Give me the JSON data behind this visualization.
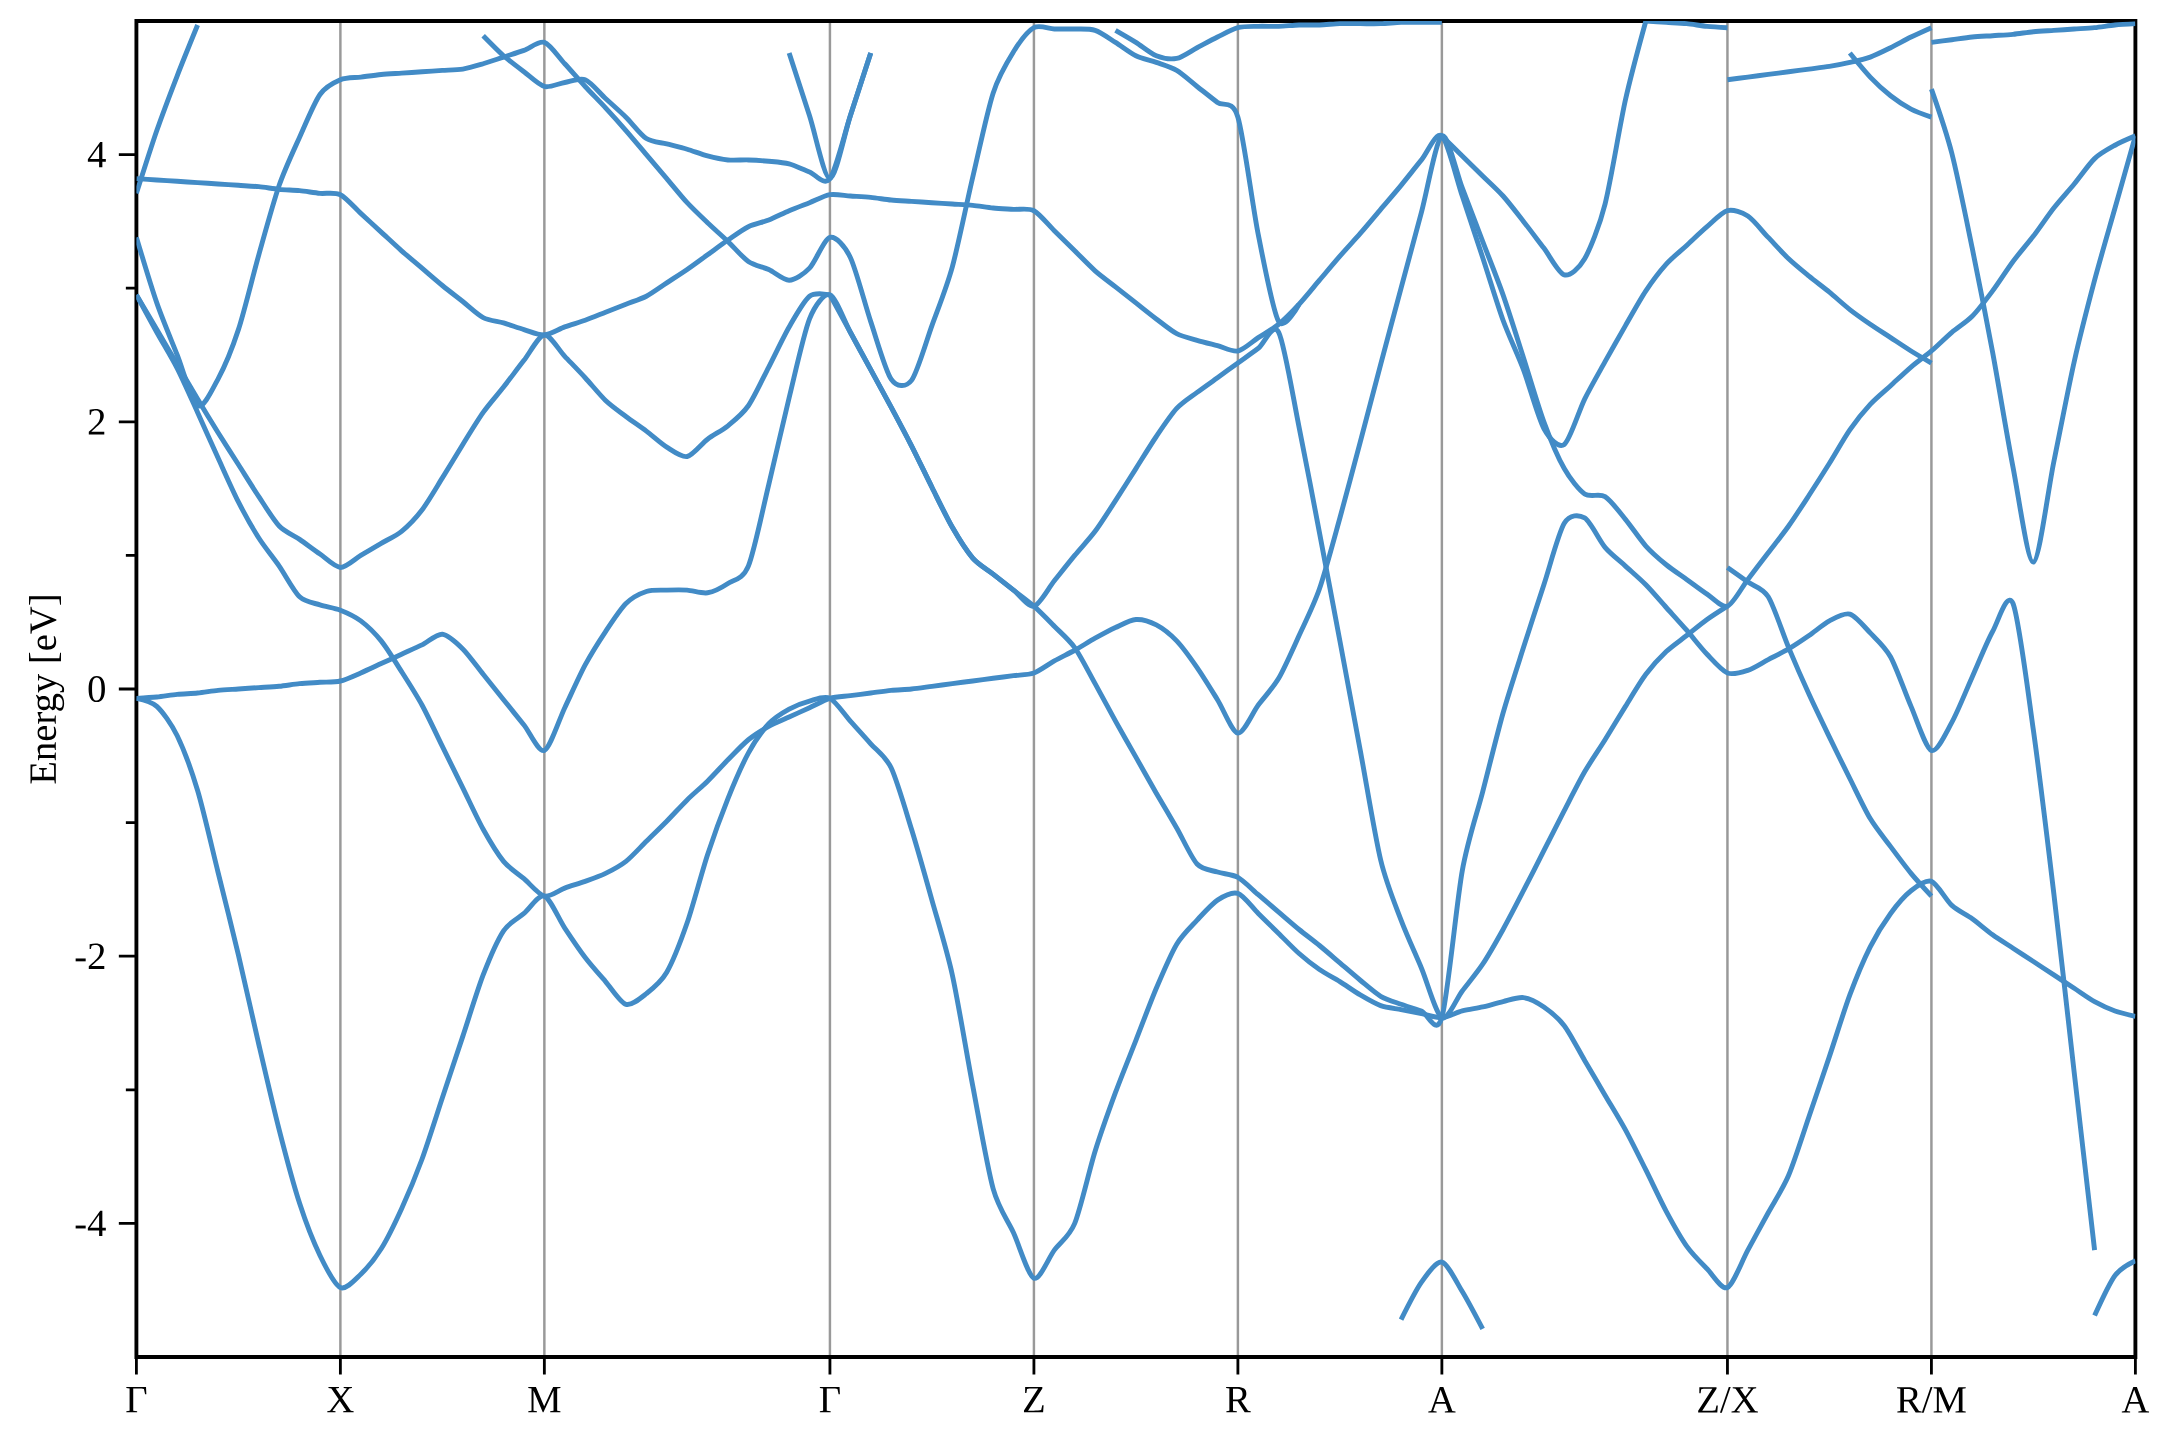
{
  "chart_data": {
    "type": "line",
    "ylabel": "Energy [eV]",
    "grid": "x",
    "ylim": [
      -5,
      5
    ],
    "categories": [
      "Γ",
      null,
      null,
      null,
      null,
      null,
      null,
      null,
      null,
      null,
      "X",
      null,
      null,
      null,
      null,
      null,
      null,
      null,
      null,
      null,
      "M",
      null,
      null,
      null,
      null,
      null,
      null,
      null,
      null,
      null,
      null,
      null,
      null,
      null,
      "Γ",
      null,
      null,
      null,
      null,
      null,
      null,
      null,
      null,
      null,
      "Z",
      null,
      null,
      null,
      null,
      null,
      null,
      null,
      null,
      null,
      "R",
      null,
      null,
      null,
      null,
      null,
      null,
      null,
      null,
      null,
      "A",
      null,
      null,
      null,
      null,
      null,
      null,
      null,
      null,
      null,
      null,
      null,
      null,
      null,
      "Z/X",
      null,
      null,
      null,
      null,
      null,
      null,
      null,
      null,
      null,
      "R/M",
      null,
      null,
      null,
      null,
      null,
      null,
      null,
      null,
      null,
      "A"
    ],
    "yticks": [
      -4,
      {
        "value": -3,
        "label": null
      },
      -2,
      {
        "value": -1,
        "label": null
      },
      0,
      {
        "value": 1,
        "label": null
      },
      2,
      {
        "value": 3,
        "label": null
      },
      4
    ],
    "series": [
      {
        "color": "#428bc6",
        "values": [
          -0.07,
          -0.13,
          -0.35,
          -0.76,
          -1.37,
          -1.99,
          -2.66,
          -3.3,
          -3.85,
          -4.24,
          -4.48,
          -4.38,
          -4.19,
          -3.89,
          -3.52,
          -3.06,
          -2.6,
          -2.14,
          -1.81,
          -1.68,
          -1.55,
          -1.79,
          -2.01,
          -2.19,
          -2.36,
          -2.28,
          -2.12,
          -1.75,
          -1.24,
          -0.82,
          -0.48,
          -0.26,
          -0.15,
          -0.09,
          -0.07,
          -0.24,
          -0.41,
          -0.59,
          -1.05,
          -1.58,
          -2.14,
          -2.97,
          -3.74,
          -4.07,
          -4.41,
          -4.2,
          -4.0,
          -3.46,
          -3.02,
          -2.63,
          -2.24,
          -1.91,
          -1.73,
          -1.58,
          -1.53,
          -1.68,
          -1.83,
          -1.98,
          -2.1,
          -2.19,
          -2.29,
          -2.37,
          -2.4,
          -2.43,
          -2.46,
          -2.41,
          -2.38,
          -2.34,
          -2.31,
          -2.38,
          -2.52,
          -2.78,
          -3.04,
          -3.3,
          -3.6,
          -3.91,
          -4.17,
          -4.34,
          -4.48,
          -4.2,
          -3.92,
          -3.64,
          -3.2,
          -2.75,
          -2.29,
          -1.93,
          -1.68,
          -1.51,
          -1.44,
          -1.62,
          -1.72,
          -1.84,
          -1.94,
          -2.04,
          -2.14,
          -2.24,
          -2.34,
          -2.41,
          -2.45
        ]
      },
      {
        "color": "#428bc6",
        "values": [
          2.95,
          2.67,
          2.4,
          2.07,
          1.73,
          1.4,
          1.13,
          0.92,
          0.69,
          0.63,
          0.59,
          0.51,
          0.36,
          0.13,
          -0.12,
          -0.43,
          -0.74,
          -1.05,
          -1.29,
          -1.42,
          -1.55,
          -1.49,
          -1.44,
          -1.38,
          -1.29,
          -1.14,
          -0.99,
          -0.83,
          -0.69,
          -0.53,
          -0.38,
          -0.28,
          -0.21,
          -0.14,
          -0.07,
          -0.05,
          -0.03,
          -0.01,
          0.0,
          0.02,
          0.04,
          0.06,
          0.08,
          0.1,
          0.12,
          0.21,
          0.29,
          0.38,
          0.46,
          0.52,
          0.48,
          0.36,
          0.16,
          -0.08,
          -0.33,
          -0.12,
          0.08,
          0.4,
          0.75,
          1.28,
          1.85,
          2.43,
          3.0,
          3.57,
          4.14,
          3.75,
          3.35,
          2.95,
          2.48,
          2.0,
          1.65,
          1.46,
          1.44,
          1.27,
          1.07,
          0.93,
          0.82,
          0.71,
          0.62,
          0.82,
          1.02,
          1.22,
          1.45,
          1.69,
          1.94,
          2.13,
          2.27,
          2.41,
          2.53,
          2.67,
          2.79,
          2.98,
          3.2,
          3.39,
          3.6,
          3.78,
          3.97,
          4.07,
          4.14
        ]
      },
      {
        "color": "#428bc6",
        "values": [
          -0.07,
          -0.06,
          -0.04,
          -0.03,
          -0.01,
          0.0,
          0.01,
          0.02,
          0.04,
          0.05,
          0.06,
          0.12,
          0.19,
          0.26,
          0.33,
          0.41,
          0.3,
          0.11,
          -0.08,
          -0.27,
          -0.46,
          -0.14,
          0.18,
          0.43,
          0.64,
          0.73,
          0.74,
          0.74,
          0.72,
          0.79,
          0.92,
          1.53,
          2.18,
          2.77,
          2.95,
          2.67,
          2.39,
          2.11,
          1.82,
          1.51,
          1.21,
          0.98,
          0.86,
          0.74,
          0.62,
          0.47,
          0.31,
          0.04,
          -0.24,
          -0.51,
          -0.78,
          -1.04,
          -1.31,
          -1.37,
          -1.41,
          -1.54,
          -1.67,
          -1.8,
          -1.92,
          -2.05,
          -2.18,
          -2.3,
          -2.36,
          -2.41,
          -2.46,
          -1.36,
          -0.77,
          -0.18,
          0.31,
          0.78,
          1.24,
          1.28,
          1.06,
          0.92,
          0.78,
          0.61,
          0.44,
          0.26,
          0.12,
          0.14,
          0.22,
          0.3,
          0.4,
          0.51,
          0.56,
          0.42,
          0.24,
          -0.13,
          -0.46,
          -0.25,
          0.09,
          0.43,
          0.64,
          -0.31,
          -1.53,
          -2.87,
          -4.2,
          null,
          null
        ]
      },
      {
        "color": "#428bc6",
        "values": [
          2.95,
          2.69,
          2.43,
          2.17,
          1.92,
          1.68,
          1.44,
          1.22,
          1.12,
          1.01,
          0.91,
          1.0,
          1.09,
          1.18,
          1.34,
          1.58,
          1.83,
          2.07,
          2.26,
          2.46,
          2.65,
          2.49,
          2.33,
          2.16,
          2.04,
          1.93,
          1.81,
          1.74,
          1.87,
          1.97,
          2.12,
          2.41,
          2.71,
          2.94,
          2.95,
          null,
          null,
          null,
          null,
          null,
          null,
          null,
          null,
          null,
          null,
          null,
          null,
          null,
          null,
          null,
          null,
          null,
          null,
          null,
          null,
          null,
          null,
          null,
          null,
          null,
          null,
          null,
          null,
          null,
          null,
          null,
          null,
          null,
          null,
          null,
          null,
          null,
          null,
          null,
          null,
          null,
          null,
          null,
          null,
          null,
          null,
          null,
          null,
          null,
          null,
          null,
          null,
          null,
          null,
          null,
          null,
          null,
          null,
          null,
          null,
          null,
          null,
          null,
          null
        ]
      },
      {
        "color": "#428bc6",
        "values": [
          3.82,
          3.81,
          3.8,
          3.79,
          3.78,
          3.77,
          3.76,
          3.74,
          3.73,
          3.71,
          3.7,
          3.56,
          3.42,
          3.28,
          3.15,
          3.02,
          2.9,
          2.78,
          2.74,
          2.69,
          2.65,
          2.71,
          2.76,
          2.82,
          2.88,
          2.94,
          3.04,
          3.14,
          3.25,
          3.36,
          3.46,
          3.51,
          3.58,
          3.64,
          3.7,
          3.69,
          3.68,
          3.66,
          3.65,
          3.64,
          3.63,
          3.62,
          3.6,
          3.59,
          3.58,
          3.43,
          3.28,
          3.13,
          3.01,
          2.89,
          2.77,
          2.66,
          2.61,
          2.57,
          2.53,
          2.63,
          2.73,
          2.88,
          3.06,
          3.24,
          3.41,
          3.59,
          3.77,
          3.96,
          4.14,
          3.69,
          3.23,
          2.76,
          2.39,
          1.95,
          1.83,
          2.17,
          2.45,
          2.72,
          2.98,
          3.18,
          3.32,
          3.46,
          3.58,
          3.54,
          3.38,
          3.22,
          3.09,
          2.97,
          2.84,
          2.73,
          2.63,
          2.53,
          2.44,
          null,
          null,
          null,
          null,
          null,
          null,
          null,
          null,
          null,
          null
        ]
      },
      {
        "color": "#428bc6",
        "values": [
          3.38,
          2.89,
          2.5,
          2.12,
          2.32,
          2.69,
          3.25,
          3.77,
          4.13,
          4.45,
          4.56,
          4.58,
          4.6,
          4.61,
          4.62,
          4.63,
          4.64,
          4.68,
          4.73,
          4.78,
          4.84,
          4.68,
          4.51,
          4.35,
          4.18,
          4.0,
          3.82,
          3.64,
          3.49,
          3.35,
          3.2,
          3.14,
          3.06,
          3.15,
          3.38,
          3.23,
          2.75,
          2.32,
          2.31,
          2.72,
          3.16,
          3.83,
          4.46,
          4.77,
          4.95,
          4.94,
          4.94,
          4.93,
          4.84,
          4.74,
          4.69,
          4.63,
          4.51,
          4.39,
          4.28,
          3.4,
          2.75,
          2.88,
          null,
          null,
          null,
          null,
          null,
          null,
          null,
          null,
          null,
          null,
          null,
          null,
          null,
          null,
          null,
          null,
          null,
          null,
          null,
          null,
          null,
          null,
          null,
          null,
          null,
          null,
          null,
          null,
          null,
          null,
          null,
          null,
          null,
          null,
          null,
          null,
          null,
          null,
          null,
          null,
          null
        ]
      },
      {
        "color": "#428bc6",
        "values": [
          null,
          null,
          null,
          null,
          null,
          null,
          null,
          null,
          null,
          null,
          null,
          null,
          null,
          null,
          null,
          null,
          null,
          4.89,
          4.74,
          4.62,
          4.51,
          4.54,
          4.56,
          4.42,
          4.28,
          4.12,
          4.08,
          4.04,
          3.99,
          3.96,
          3.96,
          3.95,
          3.93,
          3.87,
          3.82,
          4.29,
          4.76,
          null,
          null,
          null,
          null,
          null,
          null,
          null,
          null,
          null,
          null,
          null,
          null,
          null,
          null,
          null,
          null,
          null,
          null,
          null,
          null,
          null,
          null,
          null,
          null,
          null,
          null,
          null,
          null,
          null,
          null,
          null,
          null,
          null,
          null,
          null,
          null,
          null,
          null,
          null,
          null,
          null,
          null,
          null,
          null,
          null,
          null,
          null,
          null,
          null,
          null,
          null,
          null,
          null,
          null,
          null,
          null,
          null,
          null,
          null,
          null,
          null,
          null
        ]
      },
      {
        "color": "#428bc6",
        "values": [
          3.71,
          4.18,
          4.59,
          4.97,
          null,
          null,
          null,
          null,
          null,
          null,
          null,
          null,
          null,
          null,
          null,
          null,
          null,
          null,
          null,
          null,
          null,
          null,
          null,
          null,
          null,
          null,
          null,
          null,
          null,
          null,
          null,
          null,
          null,
          null,
          null,
          null,
          null,
          null,
          null,
          null,
          null,
          null,
          null,
          null,
          null,
          null,
          null,
          null,
          null,
          null,
          null,
          null,
          null,
          null,
          null,
          null,
          null,
          null,
          null,
          null,
          null,
          null,
          null,
          null,
          null,
          null,
          null,
          null,
          null,
          null,
          null,
          null,
          null,
          null,
          null,
          null,
          null,
          null,
          null,
          null,
          null,
          null,
          null,
          null,
          null,
          null,
          null,
          null,
          null,
          null,
          null,
          null,
          null,
          null,
          null,
          null,
          null,
          null,
          null
        ]
      },
      {
        "color": "#428bc6",
        "values": [
          null,
          null,
          null,
          null,
          null,
          null,
          null,
          null,
          null,
          null,
          null,
          null,
          null,
          null,
          null,
          null,
          null,
          null,
          null,
          null,
          null,
          null,
          null,
          null,
          null,
          null,
          null,
          null,
          null,
          null,
          null,
          null,
          4.76,
          4.29,
          3.82,
          4.29,
          4.76,
          null,
          null,
          null,
          null,
          null,
          null,
          null,
          null,
          null,
          null,
          null,
          null,
          null,
          null,
          null,
          null,
          null,
          null,
          null,
          null,
          null,
          null,
          null,
          null,
          null,
          null,
          null,
          null,
          null,
          null,
          null,
          null,
          null,
          null,
          null,
          null,
          null,
          null,
          null,
          null,
          null,
          null,
          null,
          null,
          null,
          null,
          null,
          null,
          null,
          null,
          null,
          null,
          null,
          null,
          null,
          null,
          null,
          null,
          null,
          null,
          null,
          null
        ]
      },
      {
        "color": "#428bc6",
        "values": [
          null,
          null,
          null,
          null,
          null,
          null,
          null,
          null,
          null,
          null,
          null,
          null,
          null,
          null,
          null,
          null,
          null,
          null,
          null,
          null,
          null,
          null,
          null,
          null,
          null,
          null,
          null,
          null,
          null,
          null,
          null,
          null,
          null,
          null,
          2.95,
          2.67,
          2.39,
          2.11,
          1.82,
          1.51,
          1.21,
          0.98,
          0.86,
          0.74,
          0.62,
          0.81,
          1.0,
          1.18,
          1.41,
          1.65,
          1.89,
          2.1,
          2.22,
          2.33,
          2.44,
          2.55,
          2.67,
          1.96,
          1.17,
          0.36,
          -0.46,
          -1.28,
          -1.73,
          -2.09,
          -2.46,
          -2.26,
          -2.06,
          -1.8,
          -1.51,
          -1.21,
          -0.91,
          -0.62,
          -0.38,
          -0.13,
          0.11,
          0.28,
          0.4,
          0.52,
          0.62,
          null,
          null,
          null,
          null,
          null,
          null,
          null,
          null,
          null,
          null,
          null,
          null,
          null,
          null,
          null,
          null,
          null,
          null,
          null,
          null
        ]
      },
      {
        "color": "#428bc6",
        "values": [
          null,
          null,
          null,
          null,
          null,
          null,
          null,
          null,
          null,
          null,
          null,
          null,
          null,
          null,
          null,
          null,
          null,
          null,
          null,
          null,
          null,
          null,
          null,
          null,
          null,
          null,
          null,
          null,
          null,
          null,
          null,
          null,
          null,
          null,
          null,
          null,
          null,
          null,
          null,
          null,
          null,
          null,
          null,
          null,
          null,
          null,
          null,
          null,
          null,
          null,
          null,
          null,
          null,
          null,
          null,
          null,
          null,
          null,
          null,
          null,
          null,
          null,
          null,
          null,
          4.14,
          3.99,
          3.84,
          3.69,
          3.5,
          3.3,
          3.1,
          3.22,
          3.63,
          4.41,
          5.0,
          null,
          null,
          null,
          null,
          null,
          null,
          null,
          null,
          null,
          null,
          null,
          null,
          null,
          null,
          null,
          null,
          null,
          null,
          null,
          null,
          null,
          null,
          null,
          null
        ]
      },
      {
        "color": "#428bc6",
        "values": [
          null,
          null,
          null,
          null,
          null,
          null,
          null,
          null,
          null,
          null,
          null,
          null,
          null,
          null,
          null,
          null,
          null,
          null,
          null,
          null,
          null,
          null,
          null,
          null,
          null,
          null,
          null,
          null,
          null,
          null,
          null,
          null,
          null,
          null,
          null,
          null,
          null,
          null,
          null,
          null,
          null,
          null,
          null,
          null,
          null,
          null,
          null,
          null,
          4.93,
          4.84,
          4.74,
          4.72,
          4.8,
          4.88,
          4.95,
          4.96,
          4.96,
          4.97,
          4.97,
          4.98,
          4.98,
          4.98,
          4.99,
          4.99,
          4.99,
          null,
          null,
          null,
          null,
          null,
          null,
          null,
          null,
          null,
          null,
          null,
          null,
          null,
          null,
          null,
          null,
          null,
          null,
          null,
          null,
          null,
          null,
          null,
          null,
          null,
          null,
          null,
          null,
          null,
          null,
          null,
          null,
          null,
          null
        ]
      },
      {
        "color": "#428bc6",
        "values": [
          null,
          null,
          null,
          null,
          null,
          null,
          null,
          null,
          null,
          null,
          null,
          null,
          null,
          null,
          null,
          null,
          null,
          null,
          null,
          null,
          null,
          null,
          null,
          null,
          null,
          null,
          null,
          null,
          null,
          null,
          null,
          null,
          null,
          null,
          null,
          null,
          null,
          null,
          null,
          null,
          null,
          null,
          null,
          null,
          null,
          null,
          null,
          null,
          null,
          null,
          null,
          null,
          null,
          null,
          null,
          null,
          null,
          null,
          null,
          null,
          null,
          null,
          -4.72,
          -4.44,
          -4.29,
          -4.51,
          -4.79,
          null,
          null,
          null,
          null,
          null,
          null,
          null,
          null,
          null,
          null,
          null,
          null,
          null,
          null,
          null,
          null,
          null,
          null,
          null,
          null,
          null,
          null,
          null,
          null,
          null,
          null,
          null,
          null,
          null,
          null,
          null,
          null
        ]
      },
      {
        "color": "#428bc6",
        "values": [
          null,
          null,
          null,
          null,
          null,
          null,
          null,
          null,
          null,
          null,
          null,
          null,
          null,
          null,
          null,
          null,
          null,
          null,
          null,
          null,
          null,
          null,
          null,
          null,
          null,
          null,
          null,
          null,
          null,
          null,
          null,
          null,
          null,
          null,
          null,
          null,
          null,
          null,
          null,
          null,
          null,
          null,
          null,
          null,
          null,
          null,
          null,
          null,
          null,
          null,
          null,
          null,
          null,
          null,
          null,
          null,
          null,
          null,
          null,
          null,
          null,
          null,
          null,
          null,
          null,
          null,
          null,
          null,
          null,
          null,
          null,
          null,
          null,
          null,
          5.0,
          4.99,
          4.98,
          4.96,
          4.95,
          null,
          null,
          null,
          null,
          null,
          null,
          null,
          null,
          null,
          null,
          null,
          null,
          null,
          null,
          null,
          null,
          null,
          null,
          null,
          null
        ]
      },
      {
        "color": "#428bc6",
        "values": [
          null,
          null,
          null,
          null,
          null,
          null,
          null,
          null,
          null,
          null,
          null,
          null,
          null,
          null,
          null,
          null,
          null,
          null,
          null,
          null,
          null,
          null,
          null,
          null,
          null,
          null,
          null,
          null,
          null,
          null,
          null,
          null,
          null,
          null,
          null,
          null,
          null,
          null,
          null,
          null,
          null,
          null,
          null,
          null,
          null,
          null,
          null,
          null,
          null,
          null,
          null,
          null,
          null,
          null,
          null,
          null,
          null,
          null,
          null,
          null,
          null,
          null,
          null,
          null,
          null,
          null,
          null,
          null,
          null,
          null,
          null,
          null,
          null,
          null,
          null,
          null,
          null,
          null,
          4.56,
          4.58,
          4.6,
          4.62,
          4.64,
          4.66,
          4.69,
          4.73,
          4.8,
          4.88,
          4.95,
          null,
          null,
          null,
          null,
          null,
          null,
          null,
          null,
          null,
          null
        ]
      },
      {
        "color": "#428bc6",
        "values": [
          null,
          null,
          null,
          null,
          null,
          null,
          null,
          null,
          null,
          null,
          null,
          null,
          null,
          null,
          null,
          null,
          null,
          null,
          null,
          null,
          null,
          null,
          null,
          null,
          null,
          null,
          null,
          null,
          null,
          null,
          null,
          null,
          null,
          null,
          null,
          null,
          null,
          null,
          null,
          null,
          null,
          null,
          null,
          null,
          null,
          null,
          null,
          null,
          null,
          null,
          null,
          null,
          null,
          null,
          null,
          null,
          null,
          null,
          null,
          null,
          null,
          null,
          null,
          null,
          null,
          null,
          null,
          null,
          null,
          null,
          null,
          null,
          null,
          null,
          null,
          null,
          null,
          null,
          0.91,
          0.8,
          0.69,
          0.31,
          -0.04,
          -0.36,
          -0.67,
          -0.97,
          -1.18,
          -1.38,
          -1.55,
          null,
          null,
          null,
          null,
          null,
          null,
          null,
          null,
          null,
          null
        ]
      },
      {
        "color": "#428bc6",
        "values": [
          null,
          null,
          null,
          null,
          null,
          null,
          null,
          null,
          null,
          null,
          null,
          null,
          null,
          null,
          null,
          null,
          null,
          null,
          null,
          null,
          null,
          null,
          null,
          null,
          null,
          null,
          null,
          null,
          null,
          null,
          null,
          null,
          null,
          null,
          null,
          null,
          null,
          null,
          null,
          null,
          null,
          null,
          null,
          null,
          null,
          null,
          null,
          null,
          null,
          null,
          null,
          null,
          null,
          null,
          null,
          null,
          null,
          null,
          null,
          null,
          null,
          null,
          null,
          null,
          null,
          null,
          null,
          null,
          null,
          null,
          null,
          null,
          null,
          null,
          null,
          null,
          null,
          null,
          null,
          null,
          null,
          null,
          null,
          null,
          4.76,
          4.58,
          4.44,
          4.34,
          4.28,
          null,
          null,
          null,
          null,
          null,
          null,
          null,
          null,
          null,
          null
        ]
      },
      {
        "color": "#428bc6",
        "values": [
          null,
          null,
          null,
          null,
          null,
          null,
          null,
          null,
          null,
          null,
          null,
          null,
          null,
          null,
          null,
          null,
          null,
          null,
          null,
          null,
          null,
          null,
          null,
          null,
          null,
          null,
          null,
          null,
          null,
          null,
          null,
          null,
          null,
          null,
          null,
          null,
          null,
          null,
          null,
          null,
          null,
          null,
          null,
          null,
          null,
          null,
          null,
          null,
          null,
          null,
          null,
          null,
          null,
          null,
          null,
          null,
          null,
          null,
          null,
          null,
          null,
          null,
          null,
          null,
          null,
          null,
          null,
          null,
          null,
          null,
          null,
          null,
          null,
          null,
          null,
          null,
          null,
          null,
          null,
          null,
          null,
          null,
          null,
          null,
          null,
          null,
          null,
          null,
          4.49,
          4.01,
          3.3,
          2.52,
          1.66,
          0.95,
          1.7,
          2.45,
          3.06,
          3.6,
          4.14
        ]
      },
      {
        "color": "#428bc6",
        "values": [
          null,
          null,
          null,
          null,
          null,
          null,
          null,
          null,
          null,
          null,
          null,
          null,
          null,
          null,
          null,
          null,
          null,
          null,
          null,
          null,
          null,
          null,
          null,
          null,
          null,
          null,
          null,
          null,
          null,
          null,
          null,
          null,
          null,
          null,
          null,
          null,
          null,
          null,
          null,
          null,
          null,
          null,
          null,
          null,
          null,
          null,
          null,
          null,
          null,
          null,
          null,
          null,
          null,
          null,
          null,
          null,
          null,
          null,
          null,
          null,
          null,
          null,
          null,
          null,
          null,
          null,
          null,
          null,
          null,
          null,
          null,
          null,
          null,
          null,
          null,
          null,
          null,
          null,
          null,
          null,
          null,
          null,
          null,
          null,
          null,
          null,
          null,
          null,
          4.84,
          4.86,
          4.88,
          4.89,
          4.9,
          4.92,
          4.93,
          4.94,
          4.95,
          4.97,
          4.98
        ]
      },
      {
        "color": "#428bc6",
        "values": [
          null,
          null,
          null,
          null,
          null,
          null,
          null,
          null,
          null,
          null,
          null,
          null,
          null,
          null,
          null,
          null,
          null,
          null,
          null,
          null,
          null,
          null,
          null,
          null,
          null,
          null,
          null,
          null,
          null,
          null,
          null,
          null,
          null,
          null,
          null,
          null,
          null,
          null,
          null,
          null,
          null,
          null,
          null,
          null,
          null,
          null,
          null,
          null,
          null,
          null,
          null,
          null,
          null,
          null,
          null,
          null,
          null,
          null,
          null,
          null,
          null,
          null,
          null,
          null,
          null,
          null,
          null,
          null,
          null,
          null,
          null,
          null,
          null,
          null,
          null,
          null,
          null,
          null,
          null,
          null,
          null,
          null,
          null,
          null,
          null,
          null,
          null,
          null,
          null,
          null,
          null,
          null,
          null,
          null,
          null,
          null,
          -4.69,
          -4.39,
          -4.28
        ]
      }
    ]
  }
}
